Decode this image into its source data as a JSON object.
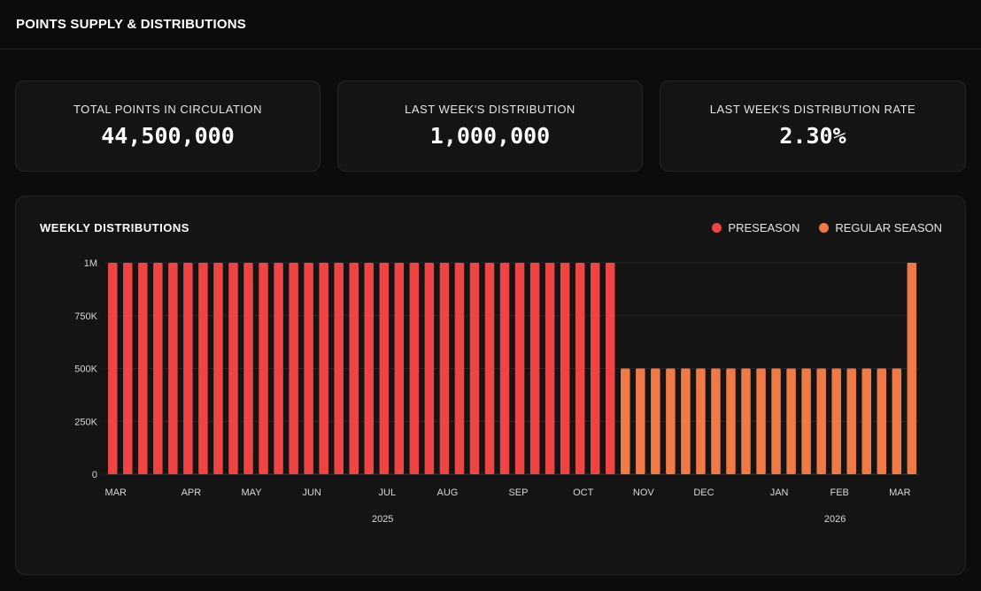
{
  "header": {
    "title": "POINTS SUPPLY & DISTRIBUTIONS"
  },
  "stats": [
    {
      "label": "TOTAL POINTS IN CIRCULATION",
      "value": "44,500,000"
    },
    {
      "label": "LAST WEEK'S DISTRIBUTION",
      "value": "1,000,000"
    },
    {
      "label": "LAST WEEK'S DISTRIBUTION RATE",
      "value": "2.30%"
    }
  ],
  "panel": {
    "title": "WEEKLY DISTRIBUTIONS"
  },
  "legend": [
    {
      "label": "PRESEASON",
      "color": "#ef4444"
    },
    {
      "label": "REGULAR SEASON",
      "color": "#f07a45"
    }
  ],
  "chart_data": {
    "type": "bar",
    "ylim": [
      0,
      1000000
    ],
    "yticks": [
      {
        "value": 0,
        "label": "0"
      },
      {
        "value": 250000,
        "label": "250K"
      },
      {
        "value": 500000,
        "label": "500K"
      },
      {
        "value": 750000,
        "label": "750K"
      },
      {
        "value": 1000000,
        "label": "1M"
      }
    ],
    "grid": true,
    "legend_position": "top-right",
    "series": [
      {
        "name": "PRESEASON",
        "color": "#ef4444",
        "values": [
          1000000,
          1000000,
          1000000,
          1000000,
          1000000,
          1000000,
          1000000,
          1000000,
          1000000,
          1000000,
          1000000,
          1000000,
          1000000,
          1000000,
          1000000,
          1000000,
          1000000,
          1000000,
          1000000,
          1000000,
          1000000,
          1000000,
          1000000,
          1000000,
          1000000,
          1000000,
          1000000,
          1000000,
          1000000,
          1000000,
          1000000,
          1000000,
          1000000,
          1000000
        ]
      },
      {
        "name": "REGULAR SEASON",
        "color": "#f07a45",
        "values": [
          500000,
          500000,
          500000,
          500000,
          500000,
          500000,
          500000,
          500000,
          500000,
          500000,
          500000,
          500000,
          500000,
          500000,
          500000,
          500000,
          500000,
          500000,
          500000,
          1000000
        ]
      }
    ],
    "month_labels": [
      {
        "label": "MAR",
        "week": 0.5
      },
      {
        "label": "APR",
        "week": 5.5
      },
      {
        "label": "MAY",
        "week": 9.5
      },
      {
        "label": "JUN",
        "week": 13.5
      },
      {
        "label": "JUL",
        "week": 18.5
      },
      {
        "label": "AUG",
        "week": 22.5
      },
      {
        "label": "SEP",
        "week": 27.2
      },
      {
        "label": "OCT",
        "week": 31.5
      },
      {
        "label": "NOV",
        "week": 35.5
      },
      {
        "label": "DEC",
        "week": 39.5
      },
      {
        "label": "JAN",
        "week": 44.5
      },
      {
        "label": "FEB",
        "week": 48.5
      },
      {
        "label": "MAR",
        "week": 52.5
      }
    ],
    "year_labels": [
      {
        "label": "2025",
        "week": 18.2
      },
      {
        "label": "2026",
        "week": 48.2
      }
    ]
  }
}
